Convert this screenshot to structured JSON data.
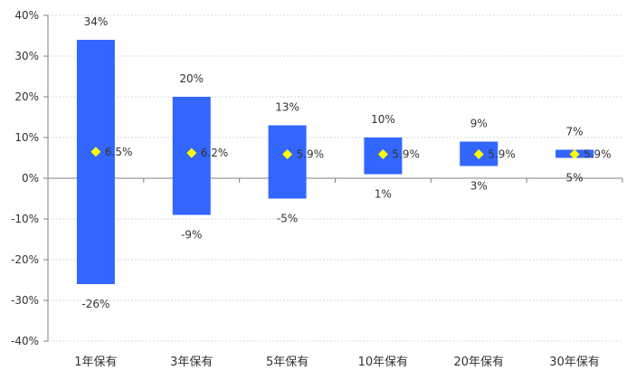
{
  "chart_data": {
    "type": "bar",
    "subtype": "floating-range-with-marker",
    "title": "",
    "xlabel": "",
    "ylabel": "",
    "ylim": [
      -40,
      40
    ],
    "yticks": [
      -40,
      -30,
      -20,
      -10,
      0,
      10,
      20,
      30,
      40
    ],
    "ytick_labels": [
      "-40%",
      "-30%",
      "-20%",
      "-10%",
      "0%",
      "10%",
      "20%",
      "30%",
      "40%"
    ],
    "grid": true,
    "legend": "none",
    "categories": [
      "1年保有",
      "3年保有",
      "5年保有",
      "10年保有",
      "20年保有",
      "30年保有"
    ],
    "series": [
      {
        "role": "range",
        "color": "#3366FF",
        "high": [
          34,
          20,
          13,
          10,
          9,
          7
        ],
        "low": [
          -26,
          -9,
          -5,
          1,
          3,
          5
        ],
        "high_labels": [
          "34%",
          "20%",
          "13%",
          "10%",
          "9%",
          "7%"
        ],
        "low_labels": [
          "-26%",
          "-9%",
          "-5%",
          "1%",
          "3%",
          "5%"
        ]
      },
      {
        "role": "marker",
        "color": "#FFFF00",
        "values": [
          6.5,
          6.2,
          5.9,
          5.9,
          5.9,
          5.9
        ],
        "labels": [
          "6.5%",
          "6.2%",
          "5.9%",
          "5.9%",
          "5.9%",
          "5.9%"
        ]
      }
    ]
  }
}
